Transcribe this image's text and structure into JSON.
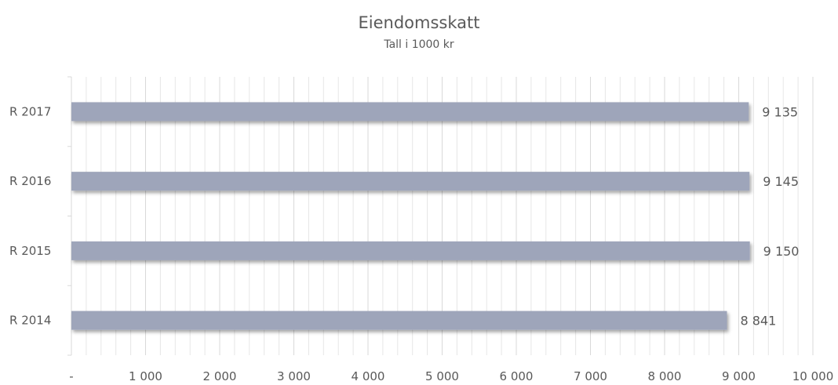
{
  "chart_data": {
    "type": "bar",
    "orientation": "horizontal",
    "title": "Eiendomsskatt",
    "subtitle": "Tall i 1000 kr",
    "categories": [
      "R 2017",
      "R 2016",
      "R 2015",
      "R 2014"
    ],
    "values": [
      9135,
      9145,
      9150,
      8841
    ],
    "data_labels": [
      "9 135",
      "9 145",
      "9 150",
      "8 841"
    ],
    "xlim": [
      0,
      10000
    ],
    "x_ticks": [
      0,
      1000,
      2000,
      3000,
      4000,
      5000,
      6000,
      7000,
      8000,
      9000,
      10000
    ],
    "x_tick_labels": [
      "-",
      "1 000",
      "2 000",
      "3 000",
      "4 000",
      "5 000",
      "6 000",
      "7 000",
      "8 000",
      "9 000",
      "10 000"
    ],
    "x_minor_step": 200,
    "grid": true,
    "legend": "none",
    "bar_color": "#9ea5ba",
    "grid_color": "#e6e6e6",
    "text_color": "#595959"
  }
}
